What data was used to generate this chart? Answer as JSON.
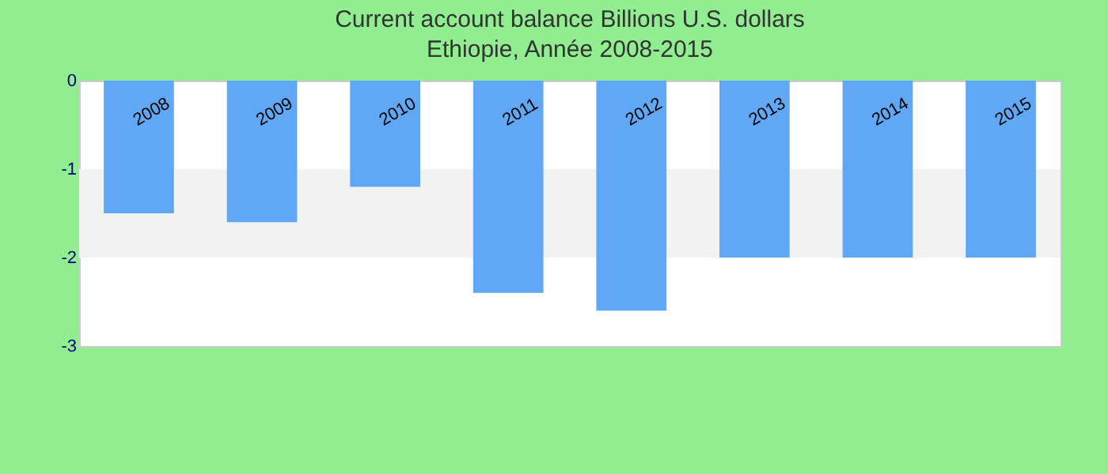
{
  "chart_data": {
    "type": "bar",
    "title": "Current account balance Billions U.S. dollars",
    "subtitle": "Ethiopie, Année 2008-2015",
    "categories": [
      "2008",
      "2009",
      "2010",
      "2011",
      "2012",
      "2013",
      "2014",
      "2015"
    ],
    "values": [
      -1.5,
      -1.6,
      -1.2,
      -2.4,
      -2.6,
      -2.0,
      -2.0,
      -2.0
    ],
    "color": "#60a8f5",
    "ylim": [
      -3,
      0
    ],
    "yticks": [
      -3,
      -2,
      -1,
      0
    ],
    "bands": [
      {
        "axis": "y",
        "from": -2,
        "to": -1,
        "color": "#f2f2f2"
      }
    ],
    "grid": false
  }
}
